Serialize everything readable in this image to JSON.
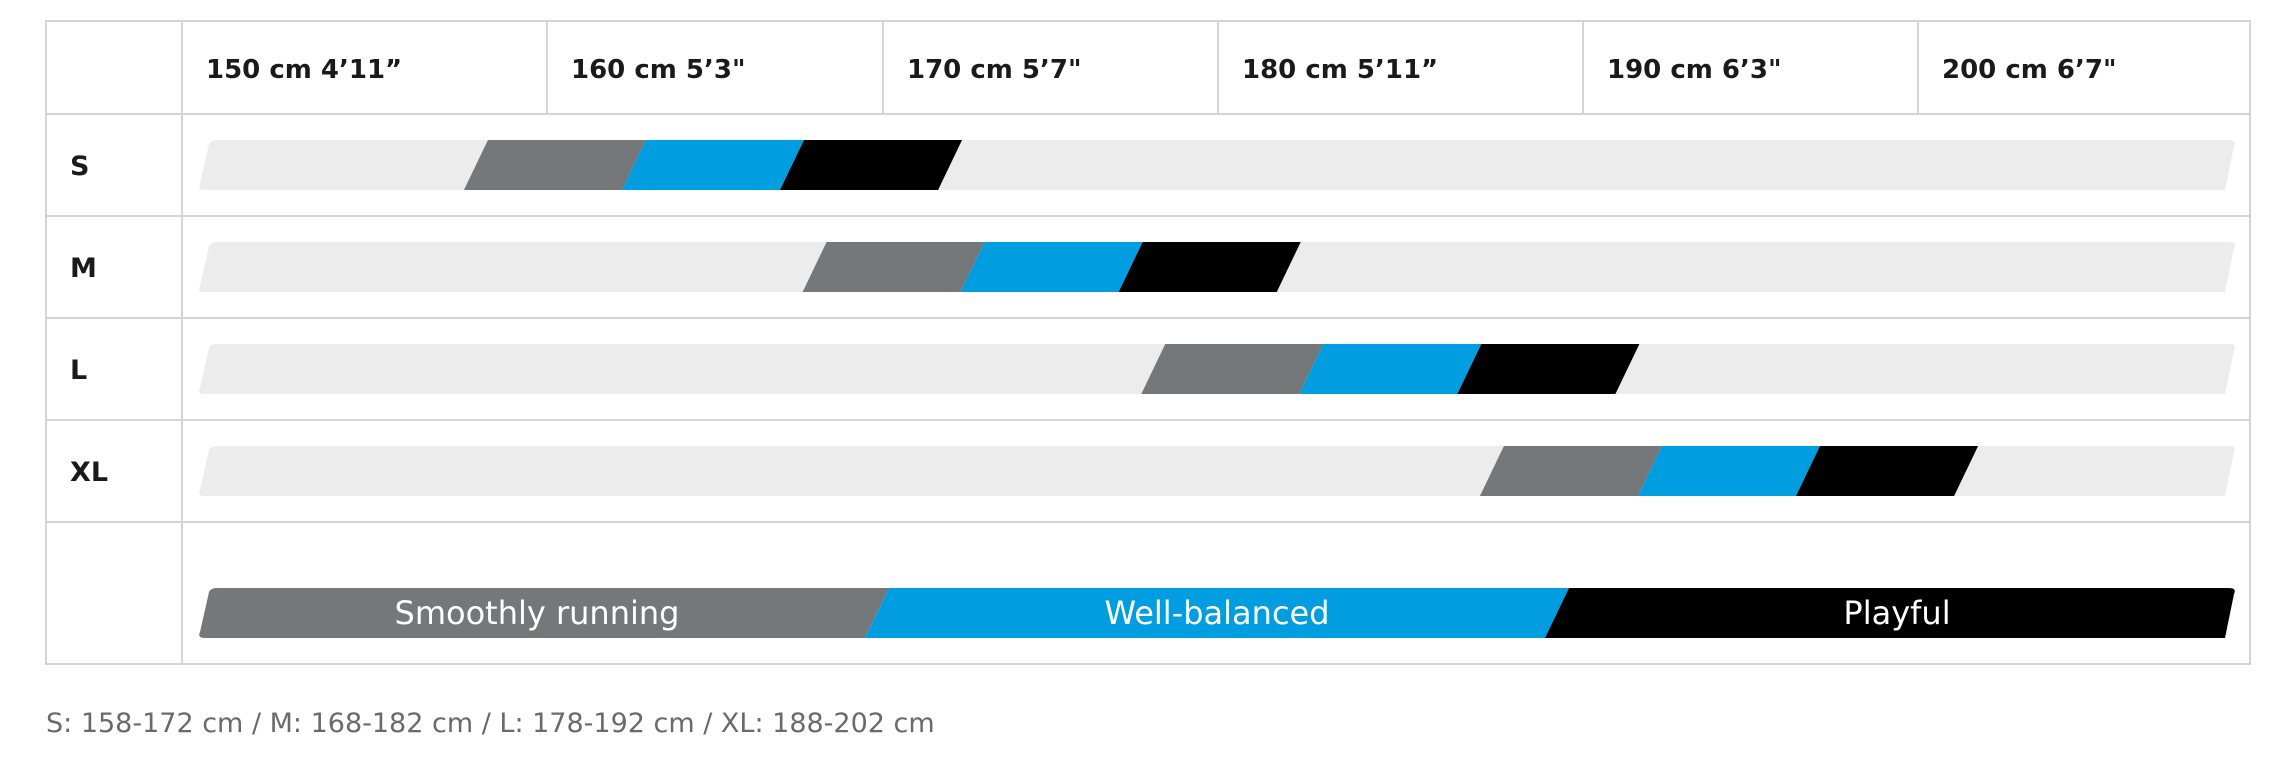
{
  "chart_data": {
    "type": "bar",
    "columns": [
      "150 cm 4’11”",
      "160 cm 5’3\"",
      "170 cm 5’7\"",
      "180 cm 5’11”",
      "190 cm 6’3\"",
      "200 cm 6’7\""
    ],
    "xlim": [
      150,
      210
    ],
    "rows": [
      {
        "size": "S",
        "range": [
          158,
          172
        ]
      },
      {
        "size": "M",
        "range": [
          168,
          182
        ]
      },
      {
        "size": "L",
        "range": [
          178,
          192
        ]
      },
      {
        "size": "XL",
        "range": [
          188,
          202
        ]
      }
    ],
    "segments": [
      {
        "name": "Smoothly running",
        "color": "#75787b"
      },
      {
        "name": "Well-balanced",
        "color": "#009ee0"
      },
      {
        "name": "Playful",
        "color": "#000000"
      }
    ],
    "track_color": "#ececec",
    "grid": true
  },
  "footnote": "S: 158-172 cm / M: 168-182 cm / L: 178-192 cm / XL: 188-202 cm"
}
